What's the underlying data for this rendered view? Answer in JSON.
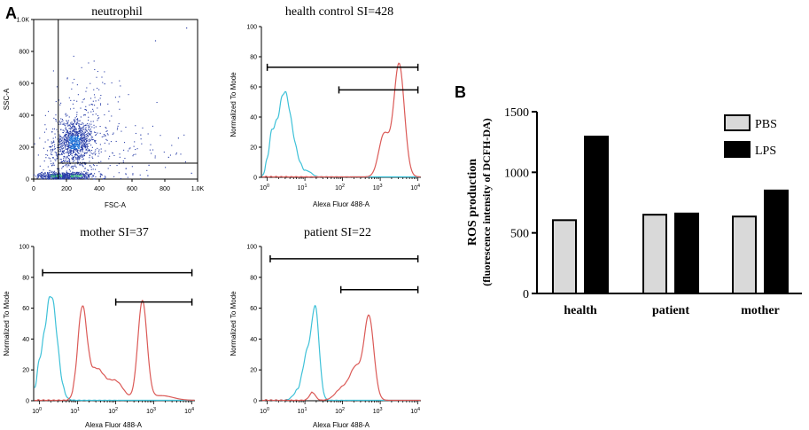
{
  "panel_labels": {
    "a": "A",
    "b": "B"
  },
  "chart_data": [
    {
      "type": "scatter",
      "title": "neutrophil",
      "xlabel": "FSC-A",
      "ylabel": "SSC-A",
      "xlim": [
        0,
        1000
      ],
      "ylim": [
        0,
        1000
      ],
      "x_ticks": [
        "0",
        "200",
        "400",
        "600",
        "800",
        "1.0K"
      ],
      "y_ticks": [
        "0",
        "200",
        "400",
        "600",
        "800",
        "1.0K"
      ],
      "gate": {
        "x_min": 150,
        "y_min": 100
      },
      "clusters": [
        {
          "cx": 250,
          "cy": 230,
          "sx": 55,
          "sy": 70,
          "n": 900
        },
        {
          "cx": 140,
          "cy": 20,
          "sx": 60,
          "sy": 12,
          "n": 380
        },
        {
          "cx": 260,
          "cy": 20,
          "sx": 60,
          "sy": 12,
          "n": 250
        },
        {
          "cx": 330,
          "cy": 380,
          "sx": 100,
          "sy": 170,
          "n": 170
        },
        {
          "cx": 500,
          "cy": 150,
          "sx": 180,
          "sy": 100,
          "n": 110
        },
        {
          "cx": 120,
          "cy": 150,
          "sx": 50,
          "sy": 60,
          "n": 90
        }
      ],
      "outliers": [
        [
          740,
          870
        ],
        [
          930,
          950
        ],
        [
          650,
          280
        ],
        [
          520,
          520
        ],
        [
          880,
          260
        ],
        [
          820,
          140
        ],
        [
          430,
          600
        ],
        [
          700,
          90
        ],
        [
          960,
          40
        ]
      ]
    },
    {
      "type": "line",
      "title": "health control SI=428",
      "xlabel": "Alexa Fluor 488-A",
      "ylabel": "Normalized To Mode",
      "x_scale": "log",
      "xlim": [
        0.7,
        12000
      ],
      "ylim": [
        0,
        100
      ],
      "x_ticks": [
        "10^0",
        "10^1",
        "10^2",
        "10^3",
        "10^4"
      ],
      "y_ticks": [
        "0",
        "20",
        "40",
        "60",
        "80",
        "100"
      ],
      "gates": [
        {
          "from": 1,
          "to": 10000,
          "level": 73
        },
        {
          "from": 80,
          "to": 10000,
          "level": 58
        }
      ],
      "series": [
        {
          "name": "PBS",
          "color": "#3ec1d8",
          "peaks": [
            {
              "mu": 0.45,
              "sigma": 0.17,
              "amp": 55
            },
            {
              "mu": 0.12,
              "sigma": 0.1,
              "amp": 22
            },
            {
              "mu": 0.75,
              "sigma": 0.15,
              "amp": 10
            },
            {
              "mu": 1.1,
              "sigma": 0.1,
              "amp": 3
            }
          ]
        },
        {
          "name": "LPS",
          "color": "#db5a57",
          "peaks": [
            {
              "mu": 3.5,
              "sigma": 0.14,
              "amp": 75
            },
            {
              "mu": 3.1,
              "sigma": 0.14,
              "amp": 28
            }
          ]
        }
      ]
    },
    {
      "type": "line",
      "title": "mother SI=37",
      "xlabel": "Alexa Fluor 488-A",
      "ylabel": "Normalized To Mode",
      "x_scale": "log",
      "xlim": [
        0.7,
        12000
      ],
      "ylim": [
        0,
        100
      ],
      "x_ticks": [
        "10^0",
        "10^1",
        "10^2",
        "10^3",
        "10^4"
      ],
      "y_ticks": [
        "0",
        "20",
        "40",
        "60",
        "80",
        "100"
      ],
      "gates": [
        {
          "from": 1.2,
          "to": 10000,
          "level": 83
        },
        {
          "from": 100,
          "to": 10000,
          "level": 64
        }
      ],
      "series": [
        {
          "name": "PBS",
          "color": "#3ec1d8",
          "peaks": [
            {
              "mu": 0.3,
              "sigma": 0.16,
              "amp": 68
            },
            {
              "mu": 0.0,
              "sigma": 0.1,
              "amp": 15
            }
          ]
        },
        {
          "name": "LPS",
          "color": "#db5a57",
          "peaks": [
            {
              "mu": 1.12,
              "sigma": 0.12,
              "amp": 58
            },
            {
              "mu": 1.5,
              "sigma": 0.2,
              "amp": 20
            },
            {
              "mu": 2.0,
              "sigma": 0.2,
              "amp": 12
            },
            {
              "mu": 2.7,
              "sigma": 0.12,
              "amp": 64
            },
            {
              "mu": 3.2,
              "sigma": 0.3,
              "amp": 3
            }
          ]
        }
      ]
    },
    {
      "type": "line",
      "title": "patient SI=22",
      "xlabel": "Alexa Fluor 488-A",
      "ylabel": "Normalized To Mode",
      "x_scale": "log",
      "xlim": [
        0.7,
        12000
      ],
      "ylim": [
        0,
        100
      ],
      "x_ticks": [
        "10^0",
        "10^1",
        "10^2",
        "10^3",
        "10^4"
      ],
      "y_ticks": [
        "0",
        "20",
        "40",
        "60",
        "80",
        "100"
      ],
      "gates": [
        {
          "from": 1.2,
          "to": 10000,
          "level": 92
        },
        {
          "from": 90,
          "to": 10000,
          "level": 72
        }
      ],
      "series": [
        {
          "name": "PBS",
          "color": "#3ec1d8",
          "peaks": [
            {
              "mu": 1.28,
              "sigma": 0.1,
              "amp": 58
            },
            {
              "mu": 1.05,
              "sigma": 0.11,
              "amp": 28
            },
            {
              "mu": 0.8,
              "sigma": 0.12,
              "amp": 5
            }
          ]
        },
        {
          "name": "LPS",
          "color": "#db5a57",
          "peaks": [
            {
              "mu": 2.7,
              "sigma": 0.13,
              "amp": 54
            },
            {
              "mu": 2.35,
              "sigma": 0.15,
              "amp": 20
            },
            {
              "mu": 2.0,
              "sigma": 0.18,
              "amp": 8
            },
            {
              "mu": 1.2,
              "sigma": 0.08,
              "amp": 5
            }
          ]
        }
      ]
    },
    {
      "type": "bar",
      "title": "",
      "categories": [
        "health",
        "patient",
        "mother"
      ],
      "series": [
        {
          "name": "PBS",
          "color": "#d9d9d9",
          "values": [
            605,
            650,
            635
          ]
        },
        {
          "name": "LPS",
          "color": "#000000",
          "values": [
            1295,
            660,
            850
          ]
        }
      ],
      "ylabel": "ROS production",
      "ylabel_sub": "(fluorescence intensity of DCFH-DA)",
      "ylim": [
        0,
        1500
      ],
      "y_ticks": [
        "0",
        "500",
        "1000",
        "1500"
      ],
      "legend_position": "top-right"
    }
  ]
}
